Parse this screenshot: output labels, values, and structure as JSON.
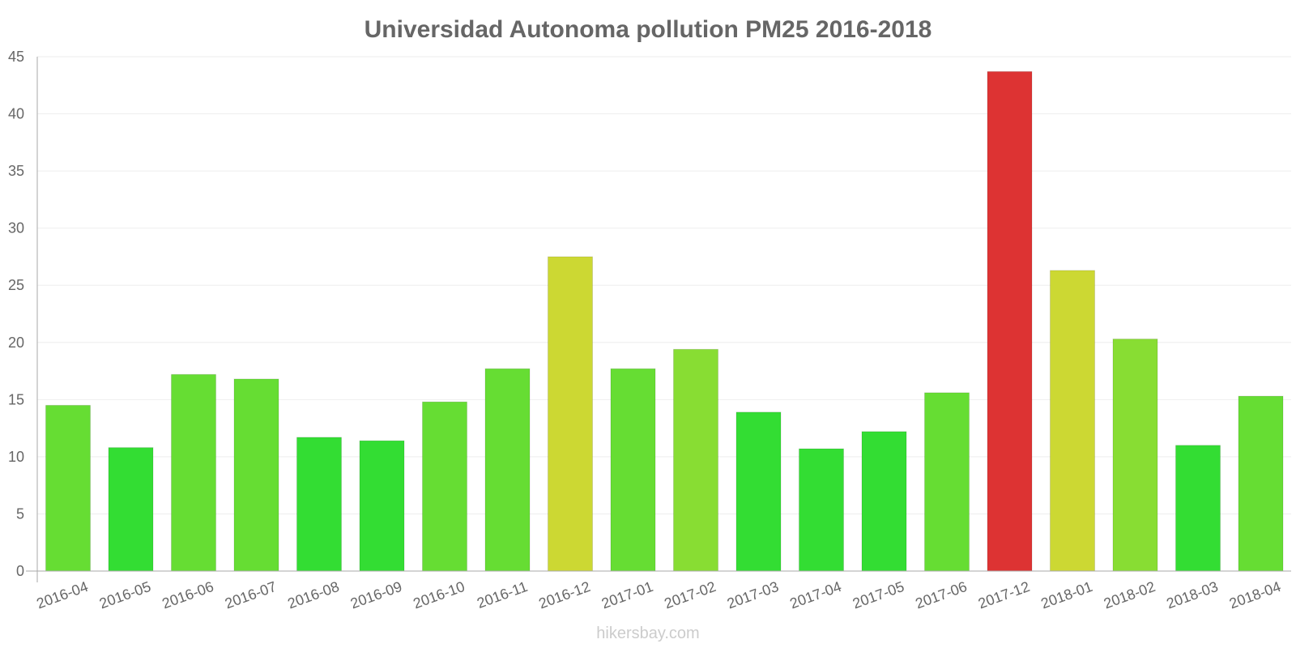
{
  "chart_data": {
    "type": "bar",
    "title": "Universidad Autonoma pollution PM25 2016-2018",
    "xlabel": "",
    "ylabel": "",
    "ylim": [
      0,
      45
    ],
    "yticks": [
      0,
      5,
      10,
      15,
      20,
      25,
      30,
      35,
      40,
      45
    ],
    "grid": true,
    "categories": [
      "2016-04",
      "2016-05",
      "2016-06",
      "2016-07",
      "2016-08",
      "2016-09",
      "2016-10",
      "2016-11",
      "2016-12",
      "2017-01",
      "2017-02",
      "2017-03",
      "2017-04",
      "2017-05",
      "2017-06",
      "2017-12",
      "2018-01",
      "2018-02",
      "2018-03",
      "2018-04"
    ],
    "values": [
      14.5,
      10.8,
      17.2,
      16.8,
      11.7,
      11.4,
      14.8,
      17.7,
      27.5,
      17.7,
      19.4,
      13.9,
      10.7,
      12.2,
      15.6,
      43.7,
      26.3,
      20.3,
      11.0,
      15.3
    ],
    "colors": {
      "good": "#33dd33",
      "moderate": "#66dd33",
      "fair": "#88dd33",
      "elevated": "#ccd833",
      "high": "#dd3333"
    }
  },
  "footer": "hikersbay.com"
}
